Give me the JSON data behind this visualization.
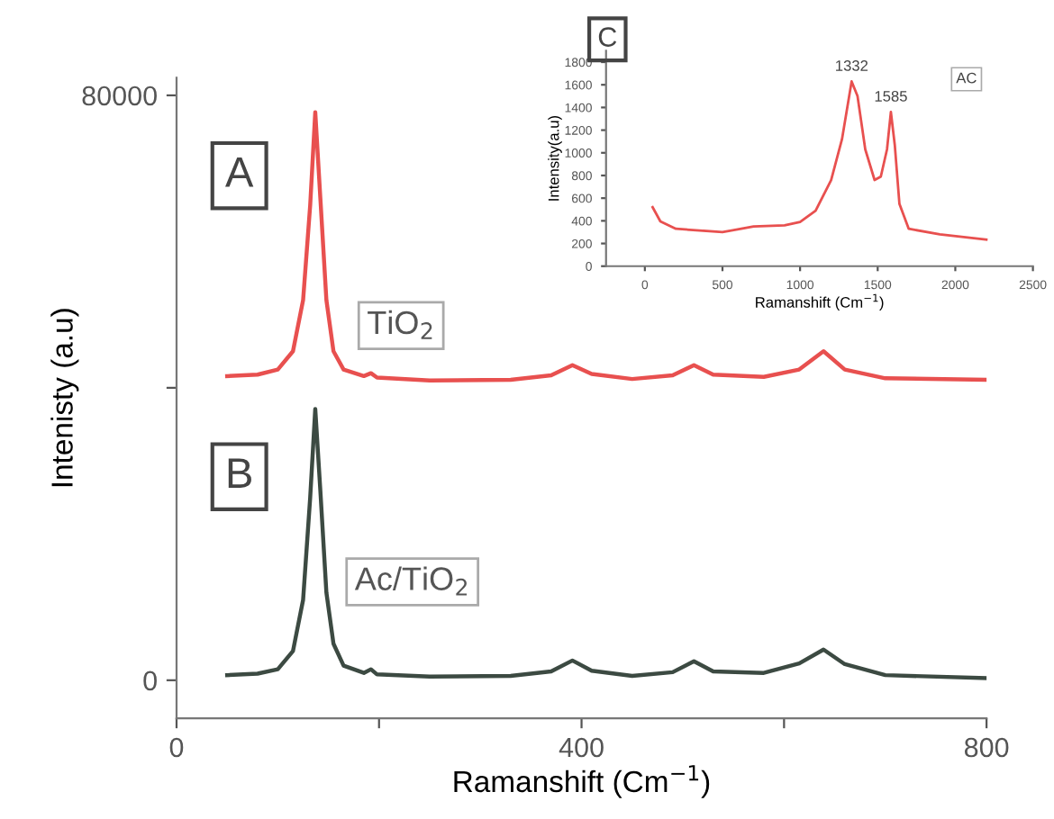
{
  "chart_data": [
    {
      "type": "line",
      "xlabel": "Ramanshift (Cm$^{−1}$)",
      "ylabel": "Intenisty (a.u)",
      "xlim": [
        0,
        800
      ],
      "xticks": [
        0,
        {
          "value": 200,
          "label": null
        },
        400,
        {
          "value": 600,
          "label": null
        },
        800
      ],
      "ylim": [
        -5200,
        82400
      ],
      "yticks": [
        0,
        {
          "value": 40000,
          "label": null
        },
        80000
      ],
      "grid": false,
      "legend": false,
      "marker": "none",
      "line_style": "solid",
      "annotations": [
        "A",
        "B"
      ],
      "series": [
        {
          "name": "TiO$_{2}$",
          "color": "#e8504f",
          "x": [
            50,
            80,
            100,
            115,
            125,
            132,
            137,
            142,
            148,
            155,
            165,
            185,
            192,
            198,
            250,
            330,
            370,
            391,
            410,
            450,
            490,
            511,
            530,
            580,
            615,
            639,
            660,
            700,
            800
          ],
          "values": [
            41600,
            41800,
            42500,
            45000,
            52000,
            65000,
            77700,
            66000,
            52000,
            45000,
            42500,
            41600,
            42000,
            41400,
            41000,
            41100,
            41700,
            43100,
            41900,
            41200,
            41700,
            43100,
            41800,
            41500,
            42500,
            45000,
            42500,
            41300,
            41100
          ]
        },
        {
          "name": "Ac/TiO$_{2}$",
          "color": "#3c4a42",
          "x": [
            50,
            80,
            100,
            115,
            125,
            132,
            137,
            142,
            148,
            155,
            165,
            185,
            192,
            198,
            250,
            330,
            370,
            391,
            410,
            450,
            490,
            511,
            530,
            580,
            615,
            639,
            660,
            700,
            800
          ],
          "values": [
            700,
            900,
            1500,
            4000,
            11000,
            25000,
            37100,
            26000,
            12000,
            5000,
            2000,
            1000,
            1500,
            800,
            500,
            600,
            1200,
            2700,
            1300,
            600,
            1100,
            2600,
            1200,
            1000,
            2300,
            4200,
            2200,
            700,
            300
          ]
        }
      ]
    },
    {
      "type": "line",
      "xlabel": "Ramanshift (Cm$^{−1}$)",
      "ylabel": "Intensity(a.u)",
      "xlim": [
        -250,
        2500
      ],
      "xticks": [
        0,
        500,
        1000,
        1500,
        2000,
        2500
      ],
      "ylim": [
        0,
        1900
      ],
      "yticks": [
        0,
        200,
        400,
        600,
        800,
        1000,
        1200,
        1400,
        1600,
        1800
      ],
      "grid": false,
      "legend": false,
      "marker": "none",
      "line_style": "solid",
      "annotations": [
        "C",
        "AC",
        {
          "text": "1332",
          "x": 1332,
          "y": 1630
        },
        {
          "text": "1585",
          "x": 1585,
          "y": 1360
        }
      ],
      "series": [
        {
          "color": "#e8504f",
          "x": [
            50,
            100,
            200,
            500,
            700,
            900,
            1000,
            1100,
            1200,
            1270,
            1332,
            1370,
            1420,
            1480,
            1520,
            1560,
            1585,
            1610,
            1640,
            1700,
            1900,
            2200
          ],
          "values": [
            520,
            395,
            330,
            300,
            350,
            360,
            390,
            490,
            760,
            1120,
            1630,
            1500,
            1030,
            760,
            790,
            1030,
            1360,
            1070,
            550,
            330,
            280,
            235
          ]
        }
      ]
    }
  ]
}
